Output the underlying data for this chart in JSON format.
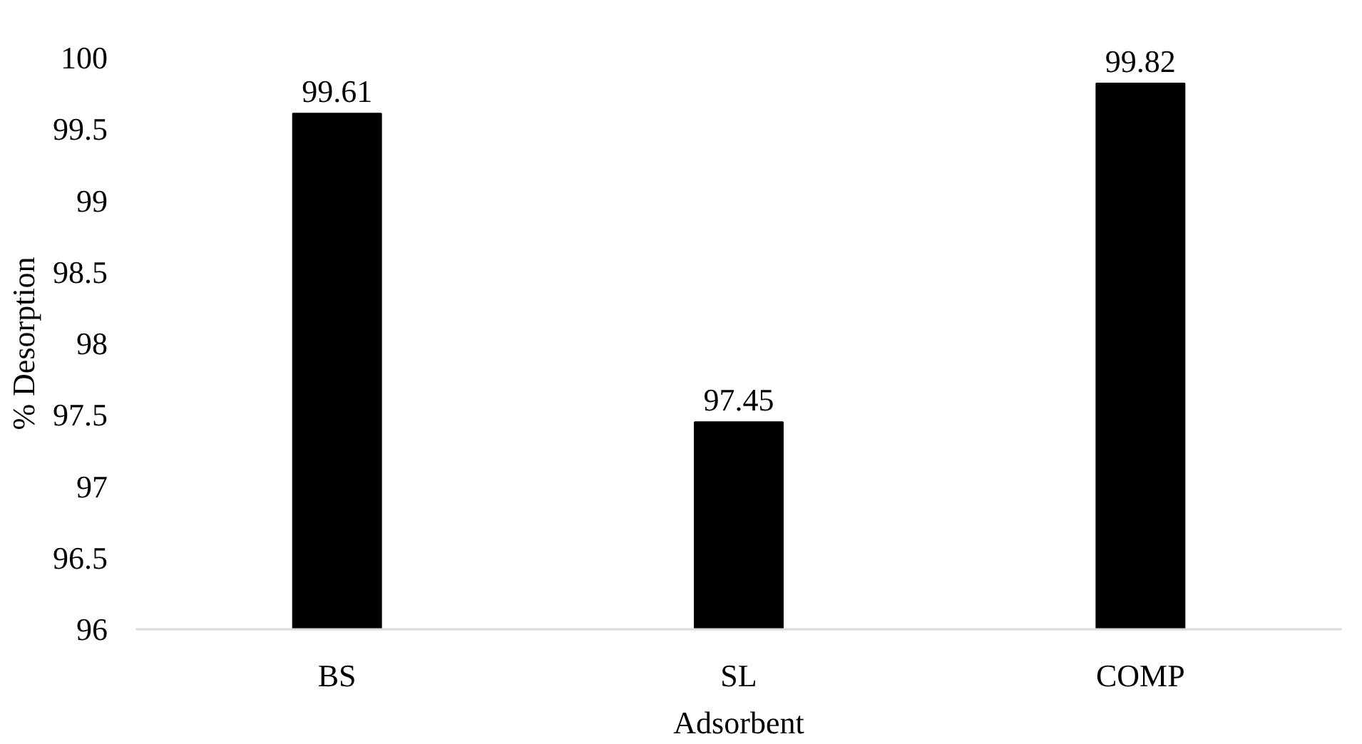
{
  "chart_data": {
    "type": "bar",
    "xlabel": "Adsorbent",
    "ylabel": "% Desorption",
    "categories": [
      "BS",
      "SL",
      "COMP"
    ],
    "values": [
      99.61,
      97.45,
      99.82
    ],
    "color": "#000000",
    "ylim": [
      96,
      100
    ],
    "yticks": [
      96,
      96.5,
      97,
      97.5,
      98,
      98.5,
      99,
      99.5,
      100
    ],
    "data_labels": true,
    "grid": false
  }
}
